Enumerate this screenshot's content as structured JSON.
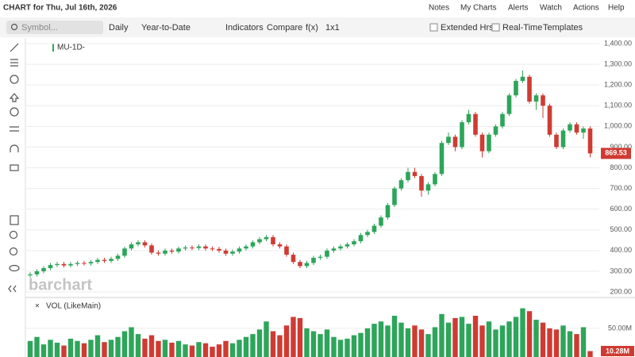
{
  "ui": {
    "header": {
      "title": "CHART for Thu, Jul 16th, 2026",
      "links": [
        "Notes",
        "My Charts",
        "Alerts",
        "Watch",
        "Actions",
        "Help"
      ]
    },
    "toolbar": {
      "search": "Symbol...",
      "items": [
        "Daily",
        "Year-to-Date",
        "Indicators",
        "Compare",
        "f(x)",
        "1x1"
      ],
      "toggles": [
        "Extended Hrs",
        "Real-Time"
      ],
      "templates": "Templates"
    },
    "watermark": "barchart"
  },
  "chart_data": [
    {
      "type": "candlestick",
      "title": "MU-1D-",
      "up_color": "#2da55a",
      "down_color": "#cf3b33",
      "grid": true,
      "open": [
        280,
        285,
        300,
        315,
        330,
        335,
        328,
        335,
        340,
        338,
        345,
        355,
        350,
        360,
        375,
        410,
        430,
        440,
        425,
        390,
        385,
        400,
        395,
        410,
        415,
        412,
        420,
        410,
        408,
        400,
        385,
        395,
        410,
        420,
        440,
        455,
        465,
        430,
        420,
        380,
        345,
        325,
        340,
        365,
        370,
        400,
        410,
        420,
        430,
        445,
        475,
        490,
        520,
        560,
        620,
        700,
        740,
        780,
        760,
        690,
        720,
        770,
        920,
        950,
        900,
        1020,
        1060,
        960,
        880,
        960,
        1000,
        1060,
        1150,
        1220,
        1240,
        1120,
        1150,
        1100,
        960,
        900,
        980,
        1010,
        970,
        990
      ],
      "high": [
        295,
        310,
        325,
        340,
        345,
        345,
        345,
        350,
        350,
        355,
        365,
        365,
        370,
        385,
        420,
        440,
        450,
        450,
        435,
        400,
        410,
        410,
        420,
        425,
        425,
        430,
        430,
        420,
        418,
        410,
        405,
        420,
        430,
        450,
        465,
        475,
        475,
        440,
        430,
        390,
        355,
        350,
        375,
        380,
        410,
        420,
        430,
        440,
        455,
        485,
        500,
        530,
        570,
        630,
        710,
        750,
        800,
        800,
        770,
        730,
        780,
        930,
        970,
        960,
        1030,
        1080,
        1070,
        970,
        970,
        1010,
        1070,
        1160,
        1230,
        1270,
        1250,
        1160,
        1160,
        1110,
        970,
        990,
        1020,
        1020,
        1000,
        1000
      ],
      "low": [
        270,
        275,
        290,
        305,
        320,
        318,
        318,
        325,
        328,
        328,
        335,
        340,
        340,
        350,
        365,
        400,
        420,
        415,
        380,
        375,
        375,
        385,
        385,
        400,
        402,
        402,
        400,
        398,
        390,
        375,
        375,
        385,
        400,
        410,
        430,
        445,
        420,
        410,
        370,
        335,
        315,
        315,
        330,
        355,
        360,
        390,
        400,
        410,
        420,
        435,
        465,
        480,
        510,
        550,
        610,
        690,
        730,
        750,
        660,
        670,
        710,
        760,
        910,
        880,
        890,
        1010,
        950,
        850,
        870,
        950,
        990,
        1050,
        1140,
        1210,
        1110,
        1080,
        1040,
        950,
        890,
        890,
        970,
        960,
        940,
        850
      ],
      "close": [
        285,
        300,
        315,
        330,
        335,
        328,
        335,
        340,
        338,
        345,
        355,
        350,
        360,
        375,
        410,
        430,
        440,
        425,
        390,
        385,
        400,
        395,
        410,
        415,
        412,
        420,
        410,
        408,
        400,
        385,
        395,
        410,
        420,
        440,
        455,
        465,
        430,
        420,
        380,
        345,
        325,
        340,
        365,
        370,
        400,
        410,
        420,
        430,
        445,
        475,
        490,
        520,
        560,
        620,
        700,
        740,
        780,
        760,
        690,
        720,
        770,
        920,
        950,
        900,
        1020,
        1060,
        960,
        880,
        960,
        1000,
        1060,
        1150,
        1220,
        1240,
        1120,
        1150,
        1100,
        960,
        900,
        980,
        1010,
        970,
        990,
        869.53
      ],
      "ylim": [
        200,
        1400
      ],
      "yticks": [
        {
          "value": 200,
          "label": "200.00"
        },
        {
          "value": 300,
          "label": "300.00"
        },
        {
          "value": 400,
          "label": "400.00"
        },
        {
          "value": 500,
          "label": "500.00"
        },
        {
          "value": 600,
          "label": "600.00"
        },
        {
          "value": 700,
          "label": "700.00"
        },
        {
          "value": 800,
          "label": "800.00"
        },
        {
          "value": 900,
          "label": "900.00"
        },
        {
          "value": 1000,
          "label": "1,000.00"
        },
        {
          "value": 1100,
          "label": "1,100.00"
        },
        {
          "value": 1200,
          "label": "1,200.00"
        },
        {
          "value": 1300,
          "label": "1,300.00"
        },
        {
          "value": 1400,
          "label": "1,400.00"
        }
      ]
    },
    {
      "type": "bar",
      "title": "VOL (LikeMain)",
      "up_color": "#2da55a",
      "down_color": "#cf3b33",
      "grid": true,
      "values": [
        28,
        35,
        22,
        30,
        25,
        20,
        32,
        28,
        24,
        30,
        38,
        26,
        30,
        35,
        45,
        52,
        40,
        32,
        38,
        28,
        30,
        25,
        28,
        22,
        20,
        26,
        24,
        18,
        22,
        28,
        24,
        30,
        35,
        40,
        48,
        62,
        45,
        38,
        55,
        70,
        68,
        50,
        45,
        40,
        48,
        35,
        30,
        32,
        38,
        42,
        50,
        58,
        62,
        55,
        72,
        60,
        50,
        55,
        48,
        40,
        52,
        75,
        60,
        68,
        70,
        58,
        72,
        55,
        62,
        48,
        55,
        62,
        70,
        85,
        80,
        65,
        60,
        50,
        48,
        55,
        45,
        40,
        52,
        10.28
      ],
      "value_labels": {
        "83": "10.28M"
      },
      "ylim": [
        0,
        90
      ],
      "yticks": [
        {
          "value": 50,
          "label": "50.00M"
        }
      ]
    }
  ]
}
